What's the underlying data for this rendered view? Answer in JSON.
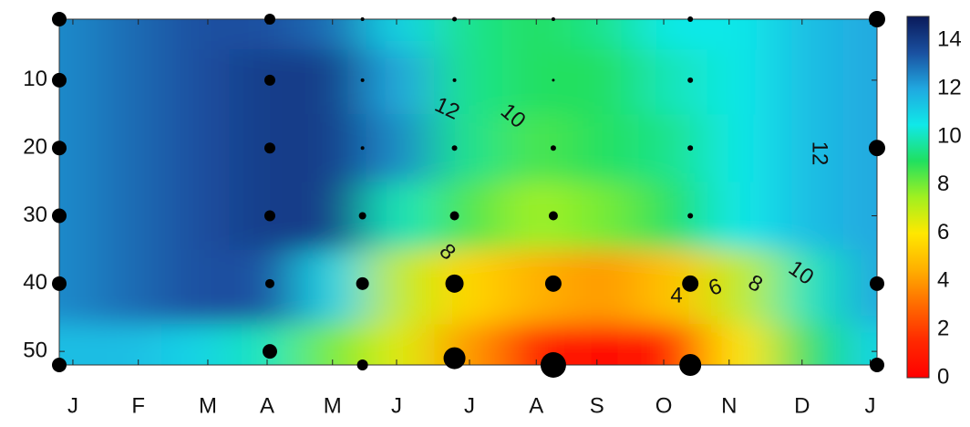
{
  "chart_data": {
    "type": "contour",
    "xlim": [
      0,
      12
    ],
    "ylim": [
      1,
      52
    ],
    "yticks": [
      10,
      20,
      30,
      40,
      50
    ],
    "xticks": [
      {
        "value": 0.2,
        "label": "J"
      },
      {
        "value": 1.16,
        "label": "F"
      },
      {
        "value": 2.18,
        "label": "M"
      },
      {
        "value": 3.05,
        "label": "A"
      },
      {
        "value": 4.01,
        "label": "M"
      },
      {
        "value": 4.95,
        "label": "J"
      },
      {
        "value": 6.02,
        "label": "J"
      },
      {
        "value": 7.0,
        "label": "A"
      },
      {
        "value": 7.89,
        "label": "S"
      },
      {
        "value": 8.87,
        "label": "O"
      },
      {
        "value": 9.83,
        "label": "N"
      },
      {
        "value": 10.9,
        "label": "D"
      },
      {
        "value": 11.9,
        "label": "J"
      }
    ],
    "grid_x": [
      0,
      1,
      2,
      3,
      4,
      5,
      6,
      7,
      8,
      9,
      10,
      11,
      12
    ],
    "grid_y": [
      1,
      10,
      20,
      30,
      40,
      52
    ],
    "z": [
      [
        12.5,
        13,
        13.5,
        13.5,
        13,
        11,
        9.5,
        9,
        9.5,
        10.5,
        10.5,
        11.5,
        12
      ],
      [
        12.5,
        13,
        13.5,
        14,
        14,
        12,
        9.5,
        9,
        9,
        10,
        10.5,
        11.5,
        12
      ],
      [
        12.5,
        13,
        13.5,
        14,
        14,
        12.5,
        9.5,
        8.5,
        9,
        9.5,
        10.5,
        11.5,
        12
      ],
      [
        12.5,
        13,
        13.5,
        14,
        14,
        10,
        8.5,
        7.5,
        8,
        9,
        10.5,
        11.5,
        12
      ],
      [
        12.5,
        13,
        13.5,
        13.5,
        11,
        7,
        5.5,
        4.5,
        4,
        5,
        7,
        10,
        12
      ],
      [
        11.5,
        11.5,
        11,
        10,
        8,
        6.5,
        4,
        1,
        0.5,
        1,
        6,
        9,
        11
      ]
    ],
    "clim": [
      0,
      15
    ],
    "cticks": [
      0,
      2,
      4,
      6,
      8,
      10,
      12,
      14
    ],
    "colorscale": [
      "#ff0000",
      "#ff2800",
      "#ff6a00",
      "#ffb000",
      "#ffe800",
      "#a0f020",
      "#20e060",
      "#10e8e8",
      "#20a8e0",
      "#1a50a0",
      "#0a1a5a"
    ],
    "contour_labels": [
      12,
      10,
      8,
      4,
      6,
      8,
      10,
      12
    ],
    "points": {
      "color": "#000000",
      "x": [
        0,
        0,
        0,
        0,
        0,
        0,
        3.09,
        3.09,
        3.09,
        3.09,
        3.09,
        3.09,
        4.45,
        4.45,
        4.45,
        4.45,
        4.45,
        4.45,
        5.8,
        5.8,
        5.8,
        5.8,
        5.8,
        5.8,
        7.25,
        7.25,
        7.25,
        7.25,
        7.25,
        7.25,
        9.26,
        9.26,
        9.26,
        9.26,
        9.26,
        9.26,
        12,
        12,
        12,
        12
      ],
      "y": [
        1,
        10,
        20,
        30,
        40,
        52,
        1,
        10,
        20,
        30,
        40,
        50,
        1,
        10,
        20,
        30,
        40,
        52,
        1,
        10,
        20,
        30,
        40,
        51,
        1,
        10,
        20,
        30,
        40,
        52,
        1,
        10,
        20,
        30,
        40,
        52,
        1,
        20,
        40,
        52
      ],
      "sizes": [
        8,
        8,
        8,
        8,
        8,
        8,
        6,
        6,
        6,
        6,
        5,
        8,
        2,
        2,
        2,
        4,
        7,
        6,
        2.5,
        2,
        3,
        5,
        10,
        12,
        2,
        1.5,
        3,
        5,
        9,
        14,
        3,
        3,
        3,
        3,
        9,
        12,
        9,
        9,
        8,
        8
      ]
    }
  }
}
